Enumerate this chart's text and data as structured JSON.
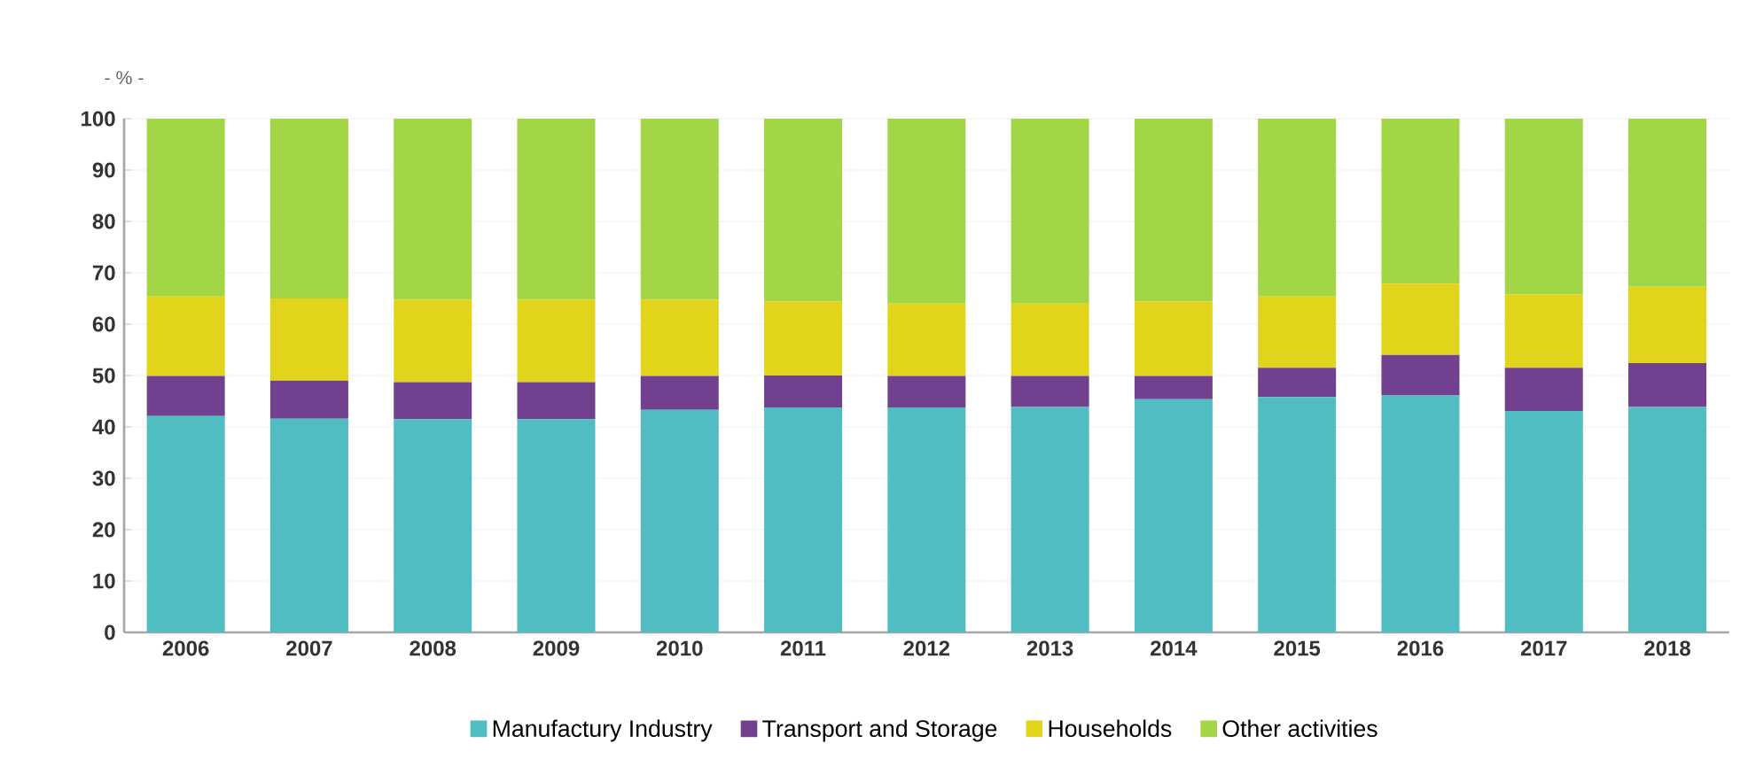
{
  "chart_data": {
    "type": "bar",
    "stacked": true,
    "ylabel": "- % -",
    "categories": [
      "2006",
      "2007",
      "2008",
      "2009",
      "2010",
      "2011",
      "2012",
      "2013",
      "2014",
      "2015",
      "2016",
      "2017",
      "2018"
    ],
    "series": [
      {
        "name": "Manufactury Industry",
        "color": "#4fbdc2",
        "values": [
          42.1,
          41.6,
          41.5,
          41.5,
          43.3,
          43.8,
          43.8,
          43.9,
          45.4,
          45.8,
          46.1,
          43.1,
          43.9
        ]
      },
      {
        "name": "Transport and Storage",
        "color": "#71408f",
        "values": [
          7.8,
          7.4,
          7.2,
          7.2,
          6.6,
          6.2,
          6.1,
          6.0,
          4.5,
          5.7,
          7.9,
          8.4,
          8.5
        ]
      },
      {
        "name": "Households",
        "color": "#e1d41a",
        "values": [
          15.5,
          16.0,
          16.1,
          16.1,
          14.9,
          14.4,
          14.1,
          14.1,
          14.5,
          13.9,
          13.9,
          14.3,
          14.9
        ]
      },
      {
        "name": "Other activities",
        "color": "#a3d646",
        "values": [
          34.6,
          35.0,
          35.2,
          35.2,
          35.2,
          35.6,
          36.0,
          36.0,
          35.6,
          34.6,
          32.1,
          34.2,
          32.7
        ]
      }
    ],
    "ylim": [
      0,
      100
    ],
    "yticks": [
      0,
      10,
      20,
      30,
      40,
      50,
      60,
      70,
      80,
      90,
      100
    ],
    "grid": "y",
    "legend": "bottom"
  }
}
